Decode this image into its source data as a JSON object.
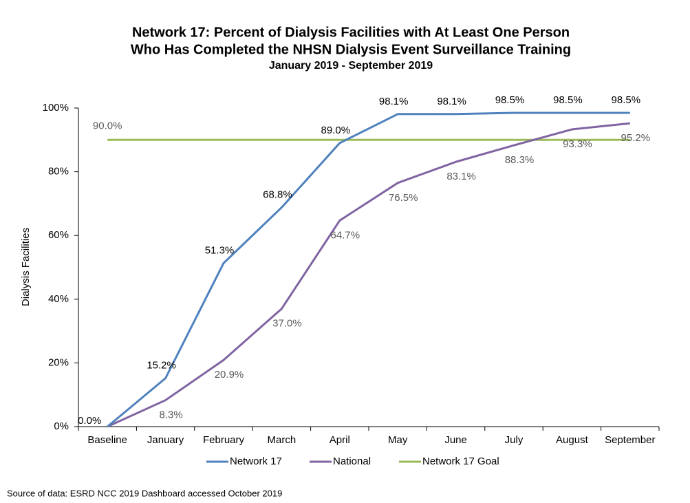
{
  "chart_data": {
    "type": "line",
    "title": [
      "Network 17:  Percent of Dialysis Facilities with At Least One Person",
      "Who Has Completed the NHSN Dialysis Event Surveillance Training"
    ],
    "subtitle": "January 2019 - September 2019",
    "y_label": "Dialysis Facilities",
    "source": "Source of data:  ESRD NCC 2019 Dashboard accessed October 2019",
    "categories": [
      "Baseline",
      "January",
      "February",
      "March",
      "April",
      "May",
      "June",
      "July",
      "August",
      "September"
    ],
    "series": [
      {
        "name": "Network 17",
        "color": "#4f81bd",
        "label_color": "#000000",
        "values": [
          0.0,
          15.2,
          51.3,
          68.8,
          89.0,
          98.1,
          98.1,
          98.5,
          98.5,
          98.5
        ],
        "value_labels": [
          "0.0%",
          "15.2%",
          "51.3%",
          "68.8%",
          "89.0%",
          "98.1%",
          "98.1%",
          "98.5%",
          "98.5%",
          "98.5%"
        ]
      },
      {
        "name": "National",
        "color": "#8064a2",
        "label_color": "#595959",
        "values": [
          0.0,
          8.3,
          20.9,
          37.0,
          64.7,
          76.5,
          83.1,
          88.3,
          93.3,
          95.2
        ],
        "value_labels": [
          null,
          "8.3%",
          "20.9%",
          "37.0%",
          "64.7%",
          "76.5%",
          "83.1%",
          "88.3%",
          "93.3%",
          "95.2%"
        ]
      },
      {
        "name": "Network 17 Goal",
        "color": "#9bbb59",
        "label_color": "#595959",
        "values": [
          90.0,
          90.0,
          90.0,
          90.0,
          90.0,
          90.0,
          90.0,
          90.0,
          90.0,
          90.0
        ],
        "value_labels": [
          "90.0%",
          null,
          null,
          null,
          null,
          null,
          null,
          null,
          null,
          null
        ]
      }
    ],
    "ylim": [
      0,
      100
    ],
    "yticks": [
      {
        "value": 0,
        "label": "0%"
      },
      {
        "value": 20,
        "label": "20%"
      },
      {
        "value": 40,
        "label": "40%"
      },
      {
        "value": 60,
        "label": "60%"
      },
      {
        "value": 80,
        "label": "80%"
      },
      {
        "value": 100,
        "label": "100%"
      }
    ],
    "legend": "bottom"
  }
}
